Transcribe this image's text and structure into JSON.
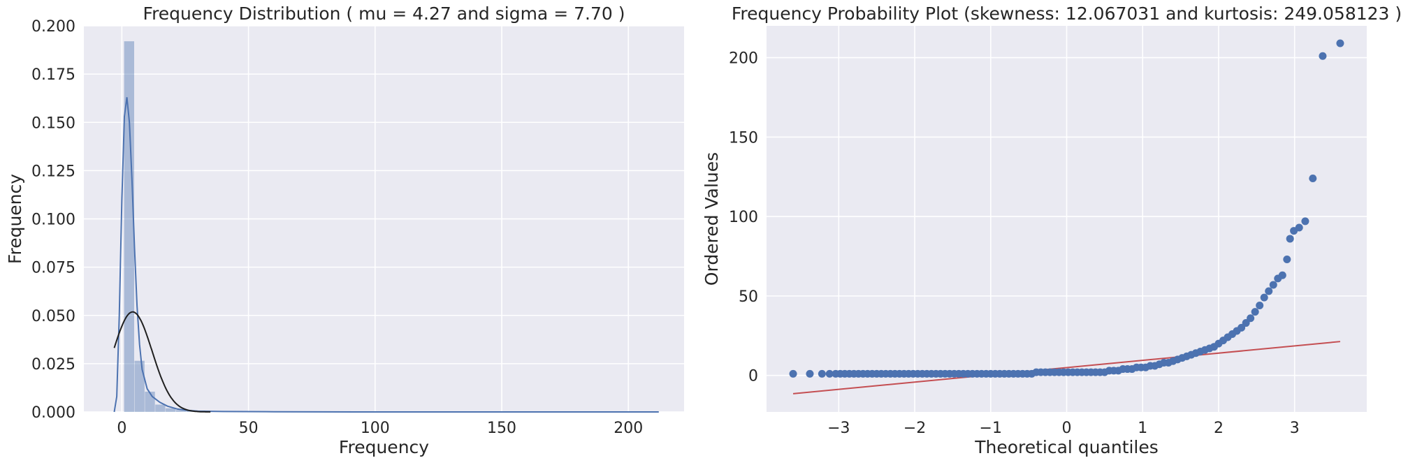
{
  "chart_data": [
    {
      "type": "histogram",
      "title": "Frequency Distribution ( mu = 4.27 and sigma = 7.70 )",
      "xlabel": "Frequency",
      "ylabel": "Frequency",
      "xlim": [
        -15,
        222
      ],
      "ylim": [
        0,
        0.2
      ],
      "xticks": [
        0,
        50,
        100,
        150,
        200
      ],
      "yticks": [
        0,
        0.025,
        0.05,
        0.075,
        0.1,
        0.125,
        0.15,
        0.175,
        0.2
      ],
      "ytick_labels": [
        "0.000",
        "0.025",
        "0.050",
        "0.075",
        "0.100",
        "0.125",
        "0.150",
        "0.175",
        "0.200"
      ],
      "grid": true,
      "bin_width": 4.1,
      "bins": [
        {
          "x0": 0.9,
          "density": 0.192
        },
        {
          "x0": 5.0,
          "density": 0.0265
        },
        {
          "x0": 9.1,
          "density": 0.0105
        },
        {
          "x0": 13.2,
          "density": 0.0038
        },
        {
          "x0": 17.3,
          "density": 0.0019
        },
        {
          "x0": 21.4,
          "density": 0.001
        },
        {
          "x0": 25.5,
          "density": 0.0006
        },
        {
          "x0": 29.6,
          "density": 0.0004
        },
        {
          "x0": 33.7,
          "density": 0.0003
        },
        {
          "x0": 37.8,
          "density": 0.0002
        },
        {
          "x0": 41.9,
          "density": 0.0002
        },
        {
          "x0": 46.0,
          "density": 0.0001
        },
        {
          "x0": 50.1,
          "density": 0.0001
        },
        {
          "x0": 54.2,
          "density": 0.0001
        },
        {
          "x0": 58.3,
          "density": 0.0001
        }
      ],
      "kde_line": {
        "color": "#4c72b0",
        "points": [
          [
            -3,
            0.0
          ],
          [
            -2,
            0.008
          ],
          [
            -1,
            0.05
          ],
          [
            0,
            0.11
          ],
          [
            1,
            0.153
          ],
          [
            2,
            0.163
          ],
          [
            3,
            0.15
          ],
          [
            4,
            0.12
          ],
          [
            5,
            0.085
          ],
          [
            6,
            0.055
          ],
          [
            7,
            0.035
          ],
          [
            8,
            0.022
          ],
          [
            10,
            0.012
          ],
          [
            12,
            0.008
          ],
          [
            15,
            0.005
          ],
          [
            18,
            0.003
          ],
          [
            22,
            0.0015
          ],
          [
            26,
            0.0008
          ],
          [
            30,
            0.0004
          ],
          [
            40,
            0.0002
          ],
          [
            60,
            0.0001
          ],
          [
            100,
            0.0
          ],
          [
            212,
            0.0
          ]
        ]
      },
      "normal_fit": {
        "mu": 4.27,
        "sigma": 7.7,
        "x_range": [
          -3,
          35
        ],
        "color": "#1f1f1f"
      },
      "bar_color": "#4c72b0",
      "bar_opacity": 0.4
    },
    {
      "type": "scatter",
      "title": "Frequency Probability Plot (skewness: 12.067031 and kurtosis: 249.058123 )",
      "xlabel": "Theoretical quantiles",
      "ylabel": "Ordered Values",
      "xlim": [
        -3.95,
        3.95
      ],
      "ylim": [
        -23,
        220
      ],
      "xticks": [
        -3,
        -2,
        -1,
        0,
        1,
        2,
        3
      ],
      "xtick_labels": [
        "−3",
        "−2",
        "−1",
        "0",
        "1",
        "2",
        "3"
      ],
      "yticks": [
        0,
        50,
        100,
        150,
        200
      ],
      "grid": true,
      "point_color": "#4c72b0",
      "fit_line": {
        "x": [
          -3.6,
          3.6
        ],
        "y": [
          -11.5,
          21.3
        ],
        "color": "#c44e52"
      },
      "points": [
        [
          -3.6,
          1
        ],
        [
          -3.38,
          1
        ],
        [
          -3.22,
          1
        ],
        [
          -3.12,
          1
        ],
        [
          -3.04,
          1
        ],
        [
          -2.98,
          1
        ],
        [
          -2.92,
          1
        ],
        [
          -2.86,
          1
        ],
        [
          -2.8,
          1
        ],
        [
          -2.74,
          1
        ],
        [
          -2.68,
          1
        ],
        [
          -2.62,
          1
        ],
        [
          -2.56,
          1
        ],
        [
          -2.5,
          1
        ],
        [
          -2.44,
          1
        ],
        [
          -2.38,
          1
        ],
        [
          -2.32,
          1
        ],
        [
          -2.26,
          1
        ],
        [
          -2.2,
          1
        ],
        [
          -2.14,
          1
        ],
        [
          -2.08,
          1
        ],
        [
          -2.02,
          1
        ],
        [
          -1.96,
          1
        ],
        [
          -1.9,
          1
        ],
        [
          -1.84,
          1
        ],
        [
          -1.78,
          1
        ],
        [
          -1.72,
          1
        ],
        [
          -1.66,
          1
        ],
        [
          -1.6,
          1
        ],
        [
          -1.54,
          1
        ],
        [
          -1.48,
          1
        ],
        [
          -1.42,
          1
        ],
        [
          -1.36,
          1
        ],
        [
          -1.3,
          1
        ],
        [
          -1.24,
          1
        ],
        [
          -1.18,
          1
        ],
        [
          -1.12,
          1
        ],
        [
          -1.06,
          1
        ],
        [
          -1.0,
          1
        ],
        [
          -0.94,
          1
        ],
        [
          -0.88,
          1
        ],
        [
          -0.82,
          1
        ],
        [
          -0.76,
          1
        ],
        [
          -0.7,
          1
        ],
        [
          -0.64,
          1
        ],
        [
          -0.58,
          1
        ],
        [
          -0.52,
          1
        ],
        [
          -0.46,
          1
        ],
        [
          -0.4,
          2
        ],
        [
          -0.34,
          2
        ],
        [
          -0.28,
          2
        ],
        [
          -0.22,
          2
        ],
        [
          -0.16,
          2
        ],
        [
          -0.1,
          2
        ],
        [
          -0.04,
          2
        ],
        [
          0.02,
          2
        ],
        [
          0.08,
          2
        ],
        [
          0.14,
          2
        ],
        [
          0.2,
          2
        ],
        [
          0.26,
          2
        ],
        [
          0.32,
          2
        ],
        [
          0.38,
          2
        ],
        [
          0.44,
          2
        ],
        [
          0.5,
          2
        ],
        [
          0.56,
          3
        ],
        [
          0.62,
          3
        ],
        [
          0.68,
          3
        ],
        [
          0.74,
          4
        ],
        [
          0.8,
          4
        ],
        [
          0.86,
          4
        ],
        [
          0.92,
          5
        ],
        [
          0.98,
          5
        ],
        [
          1.04,
          5
        ],
        [
          1.1,
          6
        ],
        [
          1.16,
          6
        ],
        [
          1.22,
          7
        ],
        [
          1.28,
          8
        ],
        [
          1.34,
          8
        ],
        [
          1.4,
          9
        ],
        [
          1.46,
          10
        ],
        [
          1.52,
          11
        ],
        [
          1.58,
          12
        ],
        [
          1.64,
          13
        ],
        [
          1.7,
          14
        ],
        [
          1.76,
          15
        ],
        [
          1.82,
          16
        ],
        [
          1.88,
          17
        ],
        [
          1.94,
          18
        ],
        [
          2.0,
          20
        ],
        [
          2.06,
          22
        ],
        [
          2.12,
          24
        ],
        [
          2.18,
          26
        ],
        [
          2.24,
          28
        ],
        [
          2.3,
          30
        ],
        [
          2.36,
          33
        ],
        [
          2.42,
          36
        ],
        [
          2.48,
          40
        ],
        [
          2.54,
          44
        ],
        [
          2.6,
          49
        ],
        [
          2.66,
          53
        ],
        [
          2.72,
          57
        ],
        [
          2.78,
          61
        ],
        [
          2.84,
          63
        ],
        [
          2.9,
          73
        ],
        [
          2.94,
          86
        ],
        [
          2.99,
          91
        ],
        [
          3.06,
          93
        ],
        [
          3.14,
          97
        ],
        [
          3.24,
          124
        ],
        [
          3.37,
          201
        ],
        [
          3.6,
          209
        ]
      ]
    }
  ]
}
